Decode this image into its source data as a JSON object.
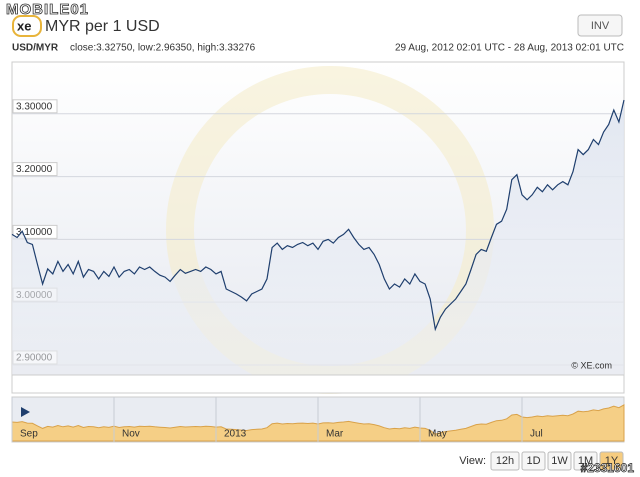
{
  "watermarks": [
    "MOBILE01",
    "#2331601"
  ],
  "header": {
    "logo": "xe",
    "title": "MYR per 1 USD",
    "invert_button": "INV"
  },
  "chart_data": {
    "type": "line",
    "pair": "USD/MYR",
    "stats": "close:3.32750, low:2.96350, high:3.33276",
    "range": "29 Aug, 2012 02:01 UTC - 28 Aug, 2013 02:01 UTC",
    "credit": "© XE.com",
    "color": "#1f3f6e",
    "grid": true,
    "ylim": [
      2.884,
      3.3825
    ],
    "yticks": [
      {
        "value": 2.9,
        "label": "2.90000"
      },
      {
        "value": 3.0,
        "label": "3.00000"
      },
      {
        "value": 3.1,
        "label": "3.10000"
      },
      {
        "value": 3.2,
        "label": "3.20000"
      },
      {
        "value": 3.3,
        "label": "3.30000"
      }
    ],
    "categories": [
      "Sep",
      null,
      null,
      null,
      null,
      null,
      null,
      null,
      null,
      null,
      null,
      null,
      null,
      null,
      null,
      null,
      null,
      null,
      null,
      null,
      "Nov",
      null,
      null,
      null,
      null,
      null,
      null,
      null,
      null,
      null,
      null,
      null,
      null,
      null,
      null,
      null,
      null,
      null,
      null,
      null,
      "2013",
      null,
      null,
      null,
      null,
      null,
      null,
      null,
      null,
      null,
      null,
      null,
      null,
      null,
      null,
      null,
      null,
      null,
      null,
      null,
      "Mar",
      null,
      null,
      null,
      null,
      null,
      null,
      null,
      null,
      null,
      null,
      null,
      null,
      null,
      null,
      null,
      null,
      null,
      null,
      null,
      "May",
      null,
      null,
      null,
      null,
      null,
      null,
      null,
      null,
      null,
      null,
      null,
      null,
      null,
      null,
      null,
      null,
      null,
      null,
      null,
      "Jul",
      null,
      null,
      null,
      null,
      null,
      null,
      null,
      null,
      null,
      null,
      null,
      null,
      null,
      null,
      null,
      null,
      null,
      null,
      null,
      null
    ],
    "values": [
      3.108,
      3.103,
      3.113,
      3.095,
      3.092,
      3.06,
      3.029,
      3.053,
      3.045,
      3.065,
      3.049,
      3.06,
      3.045,
      3.065,
      3.04,
      3.052,
      3.049,
      3.037,
      3.049,
      3.041,
      3.056,
      3.04,
      3.049,
      3.052,
      3.045,
      3.056,
      3.052,
      3.056,
      3.049,
      3.043,
      3.04,
      3.033,
      3.043,
      3.052,
      3.046,
      3.049,
      3.052,
      3.049,
      3.056,
      3.052,
      3.045,
      3.049,
      3.021,
      3.017,
      3.013,
      3.008,
      3.002,
      3.013,
      3.017,
      3.021,
      3.037,
      3.087,
      3.094,
      3.084,
      3.09,
      3.087,
      3.092,
      3.095,
      3.09,
      3.094,
      3.084,
      3.097,
      3.1,
      3.094,
      3.103,
      3.108,
      3.116,
      3.103,
      3.092,
      3.084,
      3.087,
      3.076,
      3.06,
      3.037,
      3.021,
      3.029,
      3.024,
      3.037,
      3.029,
      3.045,
      3.033,
      3.029,
      3.005,
      2.957,
      2.976,
      2.989,
      2.997,
      3.005,
      3.017,
      3.029,
      3.052,
      3.076,
      3.084,
      3.081,
      3.103,
      3.124,
      3.129,
      3.148,
      3.195,
      3.203,
      3.171,
      3.163,
      3.171,
      3.183,
      3.176,
      3.187,
      3.179,
      3.187,
      3.192,
      3.187,
      3.208,
      3.243,
      3.235,
      3.243,
      3.259,
      3.251,
      3.271,
      3.283,
      3.306,
      3.287,
      3.322
    ]
  },
  "view": {
    "label": "View:",
    "buttons": [
      "12h",
      "1D",
      "1W",
      "1M",
      "1Y"
    ],
    "active": 4
  }
}
